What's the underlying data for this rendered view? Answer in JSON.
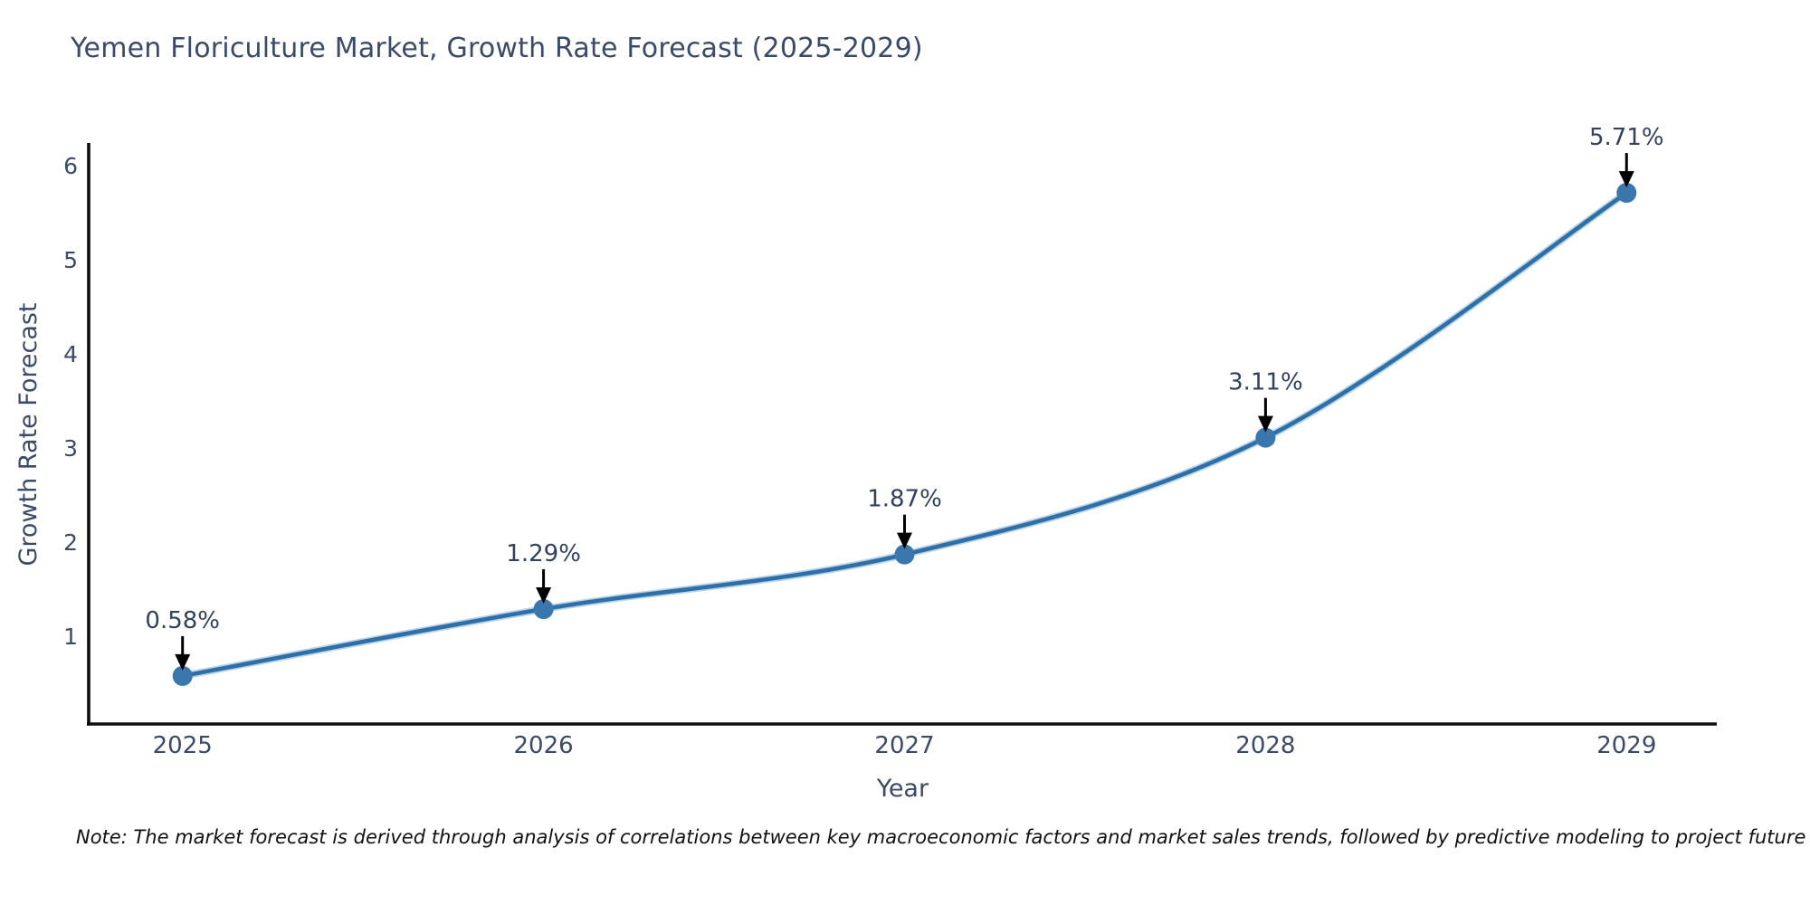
{
  "title": "Yemen Floriculture Market, Growth Rate Forecast (2025-2029)",
  "note": "Note: The market forecast is derived through analysis of correlations between key macroeconomic factors and market sales trends, followed by predictive modeling to project future sales.",
  "chart_data": {
    "type": "line",
    "title": "Yemen Floriculture Market, Growth Rate Forecast (2025-2029)",
    "xlabel": "Year",
    "ylabel": "Growth Rate Forecast",
    "categories": [
      "2025",
      "2026",
      "2027",
      "2028",
      "2029"
    ],
    "x": [
      2025,
      2026,
      2027,
      2028,
      2029
    ],
    "values": [
      0.58,
      1.29,
      1.87,
      3.11,
      5.71
    ],
    "point_labels": [
      "0.58%",
      "1.29%",
      "1.87%",
      "3.11%",
      "5.71%"
    ],
    "yticks": [
      1,
      2,
      3,
      4,
      5,
      6
    ],
    "ylim": [
      0.07,
      6.22
    ],
    "xlim": [
      2024.74,
      2029.25
    ],
    "grid": false,
    "legend": "none",
    "line_shape": "spline",
    "colors": {
      "line": "#2f6fa7",
      "line_halo": "#7fb0d6",
      "marker": "#3a77ac",
      "axis": "#0d0d0d",
      "tick_label": "#3b4a68",
      "annotation_text": "#33415c",
      "annotation_arrow": "#000000",
      "title": "#3b4a68"
    }
  }
}
